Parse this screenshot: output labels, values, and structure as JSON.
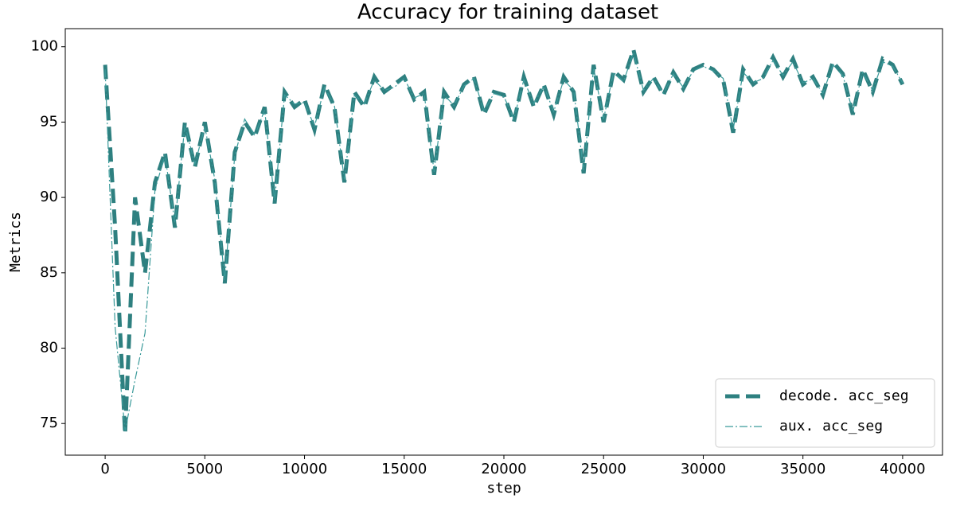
{
  "chart_data": {
    "type": "line",
    "title": "Accuracy for training dataset",
    "xlabel": "step",
    "ylabel": "Metrics",
    "x": [
      0,
      500,
      1000,
      1500,
      2000,
      2500,
      3000,
      3500,
      4000,
      4500,
      5000,
      5500,
      6000,
      6500,
      7000,
      7500,
      8000,
      8500,
      9000,
      9500,
      10000,
      10500,
      11000,
      11500,
      12000,
      12500,
      13000,
      13500,
      14000,
      14500,
      15000,
      15500,
      16000,
      16500,
      17000,
      17500,
      18000,
      18500,
      19000,
      19500,
      20000,
      20500,
      21000,
      21500,
      22000,
      22500,
      23000,
      23500,
      24000,
      24500,
      25000,
      25500,
      26000,
      26500,
      27000,
      27500,
      28000,
      28500,
      29000,
      29500,
      30000,
      30500,
      31000,
      31500,
      32000,
      32500,
      33000,
      33500,
      34000,
      34500,
      35000,
      35500,
      36000,
      36500,
      37000,
      37500,
      38000,
      38500,
      39000,
      39500,
      40000
    ],
    "series": [
      {
        "name": "decode. acc_seg",
        "color": "#2e8080",
        "linestyle": "dashed",
        "linewidth": 5,
        "values": [
          98.8,
          88,
          74.3,
          90,
          85,
          91,
          93,
          88,
          95,
          92,
          95,
          91,
          84.3,
          93,
          95,
          94,
          96,
          89.6,
          97,
          96,
          96.5,
          94.5,
          97.5,
          96,
          91,
          97,
          96,
          98,
          97,
          97.5,
          98,
          96.5,
          97,
          91.5,
          97,
          96,
          97.5,
          98,
          95.5,
          97,
          96.8,
          95,
          98,
          96,
          97.5,
          95.5,
          98,
          97,
          91.6,
          98.8,
          95,
          98.4,
          97.8,
          99.8,
          97,
          98,
          96.8,
          98.3,
          97.2,
          98.5,
          98.8,
          98.5,
          97.8,
          94.3,
          98.5,
          97.5,
          98,
          99.3,
          98,
          99.2,
          97.5,
          98,
          96.8,
          99,
          98.2,
          95.5,
          98.5,
          97,
          99.2,
          98.8,
          97.5
        ]
      },
      {
        "name": "aux. acc_seg",
        "color": "#3a9a9a",
        "linestyle": "dashdot",
        "linewidth": 1.2,
        "values": [
          98.5,
          81.4,
          74.5,
          77.9,
          81,
          90.5,
          92.8,
          88.3,
          94.8,
          92.2,
          94.7,
          91.2,
          84.5,
          92.8,
          95.2,
          94.1,
          95.8,
          89.8,
          96.8,
          96.2,
          96.3,
          94.7,
          97.3,
          96.1,
          91.2,
          96.8,
          96.2,
          97.8,
          97.1,
          97.3,
          97.9,
          96.6,
          96.9,
          91.7,
          96.8,
          96.1,
          97.4,
          97.9,
          95.7,
          96.9,
          96.7,
          95.2,
          97.8,
          96.2,
          97.4,
          95.7,
          97.8,
          97.1,
          91.8,
          98.6,
          95.2,
          98.3,
          97.7,
          99.6,
          97.1,
          97.9,
          96.9,
          98.2,
          97.3,
          98.4,
          98.7,
          98.4,
          97.9,
          94.5,
          98.3,
          97.6,
          97.9,
          99.1,
          98.1,
          99,
          97.6,
          97.9,
          96.9,
          98.8,
          98.1,
          95.7,
          98.3,
          97.1,
          99,
          98.7,
          97.6
        ]
      }
    ],
    "xlim": [
      -2000,
      42000
    ],
    "ylim": [
      72.9,
      101.2
    ],
    "xticks": [
      0,
      5000,
      10000,
      15000,
      20000,
      25000,
      30000,
      35000,
      40000
    ],
    "yticks": [
      75,
      80,
      85,
      90,
      95,
      100
    ],
    "legend": "lower right",
    "grid": false
  }
}
